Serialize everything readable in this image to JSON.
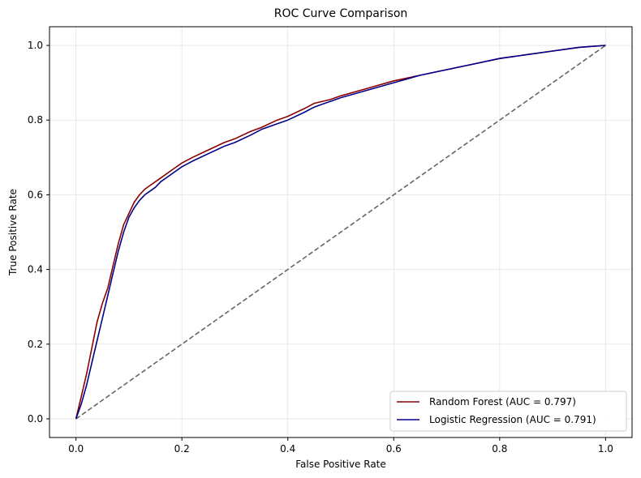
{
  "chart_data": {
    "type": "line",
    "title": "ROC Curve Comparison",
    "xlabel": "False Positive Rate",
    "ylabel": "True Positive Rate",
    "xlim": [
      -0.05,
      1.05
    ],
    "ylim": [
      -0.05,
      1.05
    ],
    "xticks": [
      "0.0",
      "0.2",
      "0.4",
      "0.6",
      "0.8",
      "1.0"
    ],
    "yticks": [
      "0.0",
      "0.2",
      "0.4",
      "0.6",
      "0.8",
      "1.0"
    ],
    "grid": true,
    "legend_position": "lower-right",
    "series": [
      {
        "name": "Random Forest (AUC = 0.797)",
        "color": "#8b0000",
        "x": [
          0,
          0.01,
          0.02,
          0.03,
          0.04,
          0.05,
          0.06,
          0.07,
          0.08,
          0.09,
          0.1,
          0.11,
          0.12,
          0.13,
          0.14,
          0.15,
          0.16,
          0.18,
          0.2,
          0.22,
          0.25,
          0.28,
          0.3,
          0.33,
          0.35,
          0.38,
          0.4,
          0.43,
          0.45,
          0.48,
          0.5,
          0.55,
          0.6,
          0.65,
          0.7,
          0.75,
          0.8,
          0.85,
          0.9,
          0.95,
          1.0
        ],
        "y": [
          0,
          0.06,
          0.12,
          0.19,
          0.26,
          0.31,
          0.35,
          0.41,
          0.47,
          0.52,
          0.55,
          0.58,
          0.6,
          0.615,
          0.625,
          0.635,
          0.645,
          0.665,
          0.685,
          0.7,
          0.72,
          0.74,
          0.75,
          0.77,
          0.78,
          0.8,
          0.81,
          0.83,
          0.845,
          0.855,
          0.865,
          0.885,
          0.905,
          0.92,
          0.935,
          0.95,
          0.965,
          0.975,
          0.985,
          0.995,
          1.0
        ]
      },
      {
        "name": "Logistic Regression (AUC = 0.791)",
        "color": "#00008b",
        "x": [
          0,
          0.01,
          0.02,
          0.03,
          0.04,
          0.05,
          0.06,
          0.07,
          0.08,
          0.09,
          0.1,
          0.11,
          0.12,
          0.13,
          0.14,
          0.15,
          0.16,
          0.18,
          0.2,
          0.22,
          0.25,
          0.28,
          0.3,
          0.33,
          0.35,
          0.38,
          0.4,
          0.43,
          0.45,
          0.48,
          0.5,
          0.55,
          0.6,
          0.65,
          0.7,
          0.75,
          0.8,
          0.85,
          0.9,
          0.95,
          1.0
        ],
        "y": [
          0,
          0.04,
          0.09,
          0.15,
          0.21,
          0.27,
          0.33,
          0.39,
          0.45,
          0.5,
          0.54,
          0.565,
          0.585,
          0.6,
          0.61,
          0.62,
          0.635,
          0.655,
          0.675,
          0.69,
          0.71,
          0.73,
          0.74,
          0.76,
          0.775,
          0.79,
          0.8,
          0.82,
          0.835,
          0.85,
          0.86,
          0.88,
          0.9,
          0.92,
          0.935,
          0.95,
          0.965,
          0.975,
          0.985,
          0.995,
          1.0
        ]
      },
      {
        "name": "",
        "color": "#666666",
        "style": "dashed",
        "x": [
          0,
          1
        ],
        "y": [
          0,
          1
        ]
      }
    ]
  }
}
